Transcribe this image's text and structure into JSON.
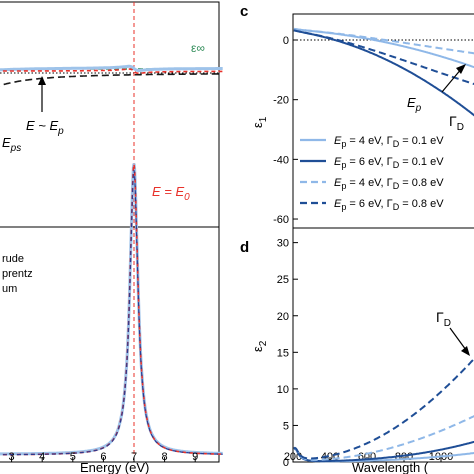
{
  "chart_data": [
    {
      "id": "left-top",
      "type": "line",
      "annotations": {
        "e_inf": "ε∞",
        "e_approx": "E ~ E",
        "e_approx_sub": "p",
        "e_ps": "E",
        "e_ps_sub": "ps",
        "e_eq": "E = E",
        "e_eq_sub": "0"
      },
      "vline_x": 7,
      "hline": "dotted reference",
      "colors": {
        "total": "#9ec3ea",
        "lorentz": "#e8312a",
        "drude": "#1a1a1a",
        "einf": "#2e8b57",
        "vline": "#e8312a"
      }
    },
    {
      "id": "left-bottom",
      "type": "line",
      "xlabel": "Energy (eV)",
      "xlim": [
        2.2,
        9.8
      ],
      "xticks": [
        "3",
        "4",
        "5",
        "6",
        "7",
        "8",
        "9"
      ],
      "legend": [
        "rude",
        "prentz",
        "um"
      ],
      "peak_x": 7,
      "colors": {
        "total": "#9ec3ea",
        "lorentz": "#e8312a",
        "drude": "#2b3a8f"
      }
    },
    {
      "id": "c",
      "panel_label": "c",
      "type": "line",
      "ylabel": "ε",
      "ylabel_sub": "1",
      "xlim": [
        200,
        1200
      ],
      "ylim": [
        -70,
        7
      ],
      "yticks": [
        0,
        -20,
        -40,
        -60
      ],
      "ann_ep": "E",
      "ann_ep_sub": "p",
      "ann_gamma": "Γ",
      "ann_gamma_sub": "D",
      "series": [
        {
          "label": "E",
          "label_sub": "p",
          "label_rest": " = 4 eV, Γ",
          "label_sub2": "D",
          "label_end": " = 0.1 eV",
          "style": "light-solid",
          "Ep": 4,
          "G": 0.1
        },
        {
          "label": "E",
          "label_sub": "p",
          "label_rest": " = 6 eV, Γ",
          "label_sub2": "D",
          "label_end": " = 0.1 eV",
          "style": "dark-solid",
          "Ep": 6,
          "G": 0.1
        },
        {
          "label": "E",
          "label_sub": "p",
          "label_rest": " = 4 eV, Γ",
          "label_sub2": "D",
          "label_end": " = 0.8 eV",
          "style": "light-dash",
          "Ep": 4,
          "G": 0.8
        },
        {
          "label": "E",
          "label_sub": "p",
          "label_rest": " = 6 eV, Γ",
          "label_sub2": "D",
          "label_end": " = 0.8 eV",
          "style": "dark-dash",
          "Ep": 6,
          "G": 0.8
        }
      ],
      "colors": {
        "light": "#8fb8e8",
        "dark": "#1f4e96"
      }
    },
    {
      "id": "d",
      "panel_label": "d",
      "type": "line",
      "ylabel": "ε",
      "ylabel_sub": "2",
      "xlabel": "Wavelength (",
      "xlim": [
        200,
        1200
      ],
      "ylim": [
        0,
        32
      ],
      "xticks": [
        200,
        400,
        600,
        800,
        1000
      ],
      "xtick_labels": [
        "200",
        "400",
        "600",
        "800",
        "1000"
      ],
      "yticks": [
        0,
        5,
        10,
        15,
        20,
        25,
        30
      ],
      "ann_gamma": "Γ",
      "ann_gamma_sub": "D"
    }
  ]
}
